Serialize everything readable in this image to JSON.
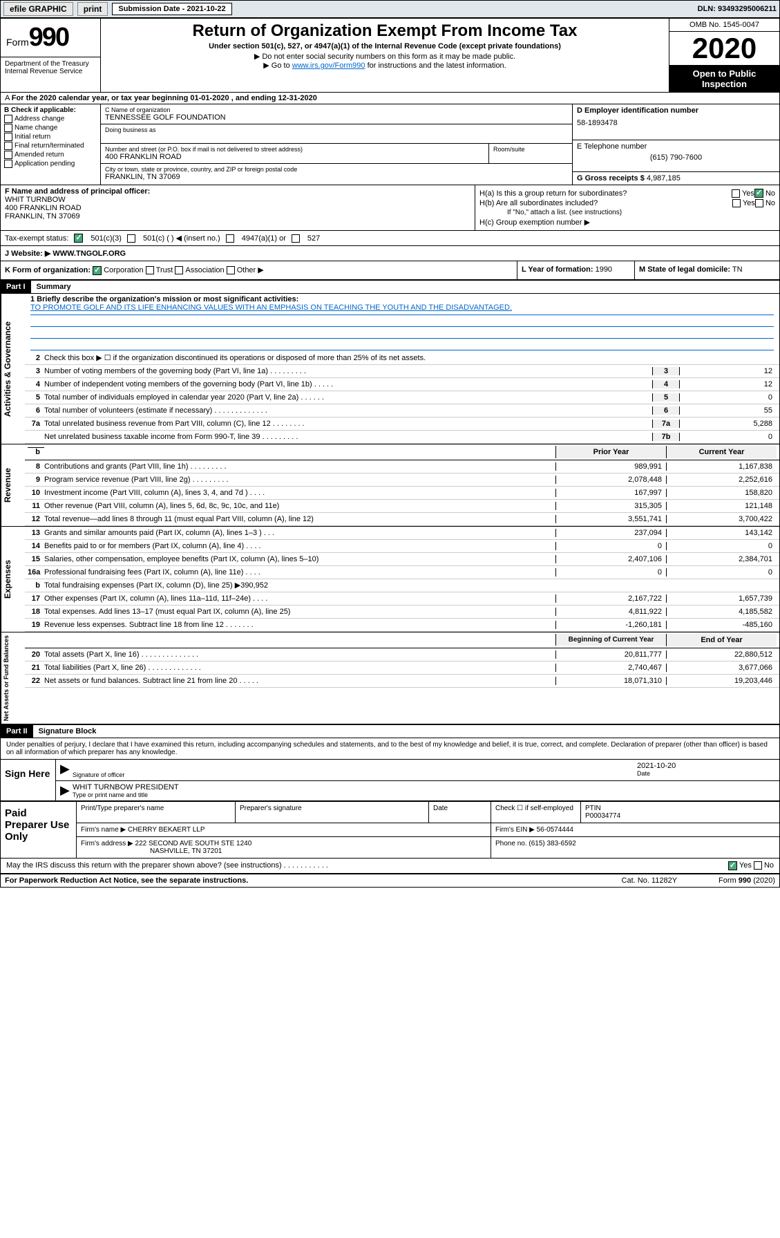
{
  "topbar": {
    "efile": "efile GRAPHIC",
    "print": "print",
    "submission": "Submission Date - 2021-10-22",
    "dln": "DLN: 93493295006211"
  },
  "header": {
    "form_word": "Form",
    "form_num": "990",
    "dept": "Department of the Treasury\nInternal Revenue Service",
    "title": "Return of Organization Exempt From Income Tax",
    "subtitle": "Under section 501(c), 527, or 4947(a)(1) of the Internal Revenue Code (except private foundations)",
    "note1": "▶ Do not enter social security numbers on this form as it may be made public.",
    "note2_pre": "▶ Go to ",
    "note2_link": "www.irs.gov/Form990",
    "note2_post": " for instructions and the latest information.",
    "omb": "OMB No. 1545-0047",
    "year": "2020",
    "open": "Open to Public Inspection"
  },
  "period": "For the 2020 calendar year, or tax year beginning 01-01-2020   , and ending 12-31-2020",
  "colB": {
    "label": "B Check if applicable:",
    "items": [
      "Address change",
      "Name change",
      "Initial return",
      "Final return/terminated",
      "Amended return",
      "Application pending"
    ]
  },
  "nameBox": {
    "c_label": "C Name of organization",
    "org": "TENNESSEE GOLF FOUNDATION",
    "dba_label": "Doing business as"
  },
  "addr": {
    "label": "Number and street (or P.O. box if mail is not delivered to street address)",
    "street": "400 FRANKLIN ROAD",
    "room_label": "Room/suite",
    "city_label": "City or town, state or province, country, and ZIP or foreign postal code",
    "city": "FRANKLIN, TN  37069"
  },
  "ein": {
    "label": "D Employer identification number",
    "value": "58-1893478"
  },
  "tel": {
    "label": "E Telephone number",
    "value": "(615) 790-7600"
  },
  "gross": {
    "label": "G Gross receipts $",
    "value": "4,987,185"
  },
  "officer": {
    "label": "F  Name and address of principal officer:",
    "name": "WHIT TURNBOW",
    "street": "400 FRANKLIN ROAD",
    "city": "FRANKLIN, TN  37069"
  },
  "h": {
    "a": "H(a)  Is this a group return for subordinates?",
    "b": "H(b)  Are all subordinates included?",
    "b_note": "If \"No,\" attach a list. (see instructions)",
    "c": "H(c)  Group exemption number ▶",
    "yes": "Yes",
    "no": "No"
  },
  "exempt": {
    "label": "Tax-exempt status:",
    "o1": "501(c)(3)",
    "o2": "501(c) (  ) ◀ (insert no.)",
    "o3": "4947(a)(1) or",
    "o4": "527"
  },
  "website": {
    "label": "J Website: ▶",
    "value": "WWW.TNGOLF.ORG"
  },
  "k": {
    "label": "K Form of organization:",
    "corp": "Corporation",
    "trust": "Trust",
    "assoc": "Association",
    "other": "Other ▶"
  },
  "l": {
    "label": "L Year of formation:",
    "value": "1990"
  },
  "m": {
    "label": "M State of legal domicile:",
    "value": "TN"
  },
  "part1": {
    "tag": "Part I",
    "title": "Summary"
  },
  "mission": {
    "prompt": "1  Briefly describe the organization's mission or most significant activities:",
    "text": "TO PROMOTE GOLF AND ITS LIFE ENHANCING VALUES WITH AN EMPHASIS ON TEACHING THE YOUTH AND THE DISADVANTAGED."
  },
  "vtabs": {
    "gov": "Activities & Governance",
    "rev": "Revenue",
    "exp": "Expenses",
    "net": "Net Assets or Fund Balances"
  },
  "gov_lines": [
    {
      "n": "2",
      "t": "Check this box ▶ ☐  if the organization discontinued its operations or disposed of more than 25% of its net assets."
    },
    {
      "n": "3",
      "t": "Number of voting members of the governing body (Part VI, line 1a)   .    .    .    .    .    .    .    .    .",
      "c": "3",
      "v": "12"
    },
    {
      "n": "4",
      "t": "Number of independent voting members of the governing body (Part VI, line 1b)   .    .    .    .    .",
      "c": "4",
      "v": "12"
    },
    {
      "n": "5",
      "t": "Total number of individuals employed in calendar year 2020 (Part V, line 2a)   .    .    .    .    .    .",
      "c": "5",
      "v": "0"
    },
    {
      "n": "6",
      "t": "Total number of volunteers (estimate if necessary)   .    .    .    .    .    .    .    .    .    .    .    .    .",
      "c": "6",
      "v": "55"
    },
    {
      "n": "7a",
      "t": "Total unrelated business revenue from Part VIII, column (C), line 12   .    .    .    .    .    .    .    .",
      "c": "7a",
      "v": "5,288"
    },
    {
      "n": "",
      "t": "Net unrelated business taxable income from Form 990-T, line 39   .    .    .    .    .    .    .    .    .",
      "c": "7b",
      "v": "0"
    }
  ],
  "pc_hdr": {
    "prior": "Prior Year",
    "curr": "Current Year"
  },
  "rev_lines": [
    {
      "n": "8",
      "t": "Contributions and grants (Part VIII, line 1h)   .    .    .    .    .    .    .    .    .",
      "p": "989,991",
      "c": "1,167,838"
    },
    {
      "n": "9",
      "t": "Program service revenue (Part VIII, line 2g)   .    .    .    .    .    .    .    .    .",
      "p": "2,078,448",
      "c": "2,252,616"
    },
    {
      "n": "10",
      "t": "Investment income (Part VIII, column (A), lines 3, 4, and 7d )   .    .    .    .",
      "p": "167,997",
      "c": "158,820"
    },
    {
      "n": "11",
      "t": "Other revenue (Part VIII, column (A), lines 5, 6d, 8c, 9c, 10c, and 11e)",
      "p": "315,305",
      "c": "121,148"
    },
    {
      "n": "12",
      "t": "Total revenue—add lines 8 through 11 (must equal Part VIII, column (A), line 12)",
      "p": "3,551,741",
      "c": "3,700,422"
    }
  ],
  "exp_lines": [
    {
      "n": "13",
      "t": "Grants and similar amounts paid (Part IX, column (A), lines 1–3 )   .    .    .",
      "p": "237,094",
      "c": "143,142"
    },
    {
      "n": "14",
      "t": "Benefits paid to or for members (Part IX, column (A), line 4)   .    .    .    .",
      "p": "0",
      "c": "0"
    },
    {
      "n": "15",
      "t": "Salaries, other compensation, employee benefits (Part IX, column (A), lines 5–10)",
      "p": "2,407,106",
      "c": "2,384,701"
    },
    {
      "n": "16a",
      "t": "Professional fundraising fees (Part IX, column (A), line 11e)   .    .    .    .",
      "p": "0",
      "c": "0"
    },
    {
      "n": "b",
      "t": "Total fundraising expenses (Part IX, column (D), line 25) ▶390,952",
      "shade": true
    },
    {
      "n": "17",
      "t": "Other expenses (Part IX, column (A), lines 11a–11d, 11f–24e)  .    .    .    .",
      "p": "2,167,722",
      "c": "1,657,739"
    },
    {
      "n": "18",
      "t": "Total expenses. Add lines 13–17 (must equal Part IX, column (A), line 25)",
      "p": "4,811,922",
      "c": "4,185,582"
    },
    {
      "n": "19",
      "t": "Revenue less expenses. Subtract line 18 from line 12  .    .    .    .    .    .    .",
      "p": "-1,260,181",
      "c": "-485,160"
    }
  ],
  "bc_hdr": {
    "begin": "Beginning of Current Year",
    "end": "End of Year"
  },
  "net_lines": [
    {
      "n": "20",
      "t": "Total assets (Part X, line 16)  .    .    .    .    .    .    .    .    .    .    .    .    .    .",
      "p": "20,811,777",
      "c": "22,880,512"
    },
    {
      "n": "21",
      "t": "Total liabilities (Part X, line 26)   .    .    .    .    .    .    .    .    .    .    .    .    .",
      "p": "2,740,467",
      "c": "3,677,066"
    },
    {
      "n": "22",
      "t": "Net assets or fund balances. Subtract line 21 from line 20  .    .    .    .    .",
      "p": "18,071,310",
      "c": "19,203,446"
    }
  ],
  "part2": {
    "tag": "Part II",
    "title": "Signature Block"
  },
  "perjury": "Under penalties of perjury, I declare that I have examined this return, including accompanying schedules and statements, and to the best of my knowledge and belief, it is true, correct, and complete. Declaration of preparer (other than officer) is based on all information of which preparer has any knowledge.",
  "sign": {
    "here": "Sign Here",
    "sig_label": "Signature of officer",
    "date": "2021-10-20",
    "date_label": "Date",
    "name": "WHIT TURNBOW  PRESIDENT",
    "name_label": "Type or print name and title"
  },
  "paid": {
    "title": "Paid Preparer Use Only",
    "h1": "Print/Type preparer's name",
    "h2": "Preparer's signature",
    "h3": "Date",
    "h4": "Check ☐ if self-employed",
    "h5": "PTIN",
    "ptin": "P00034774",
    "firm_label": "Firm's name    ▶",
    "firm": "CHERRY BEKAERT LLP",
    "ein_label": "Firm's EIN ▶",
    "ein": "56-0574444",
    "addr_label": "Firm's address ▶",
    "addr1": "222 SECOND AVE SOUTH STE 1240",
    "addr2": "NASHVILLE, TN  37201",
    "phone_label": "Phone no.",
    "phone": "(615) 383-6592"
  },
  "discuss": {
    "q": "May the IRS discuss this return with the preparer shown above? (see instructions)   .    .    .    .    .    .    .    .    .    .    .",
    "yes": "Yes",
    "no": "No"
  },
  "footer": {
    "left": "For Paperwork Reduction Act Notice, see the separate instructions.",
    "cat": "Cat. No. 11282Y",
    "form": "Form 990 (2020)"
  }
}
